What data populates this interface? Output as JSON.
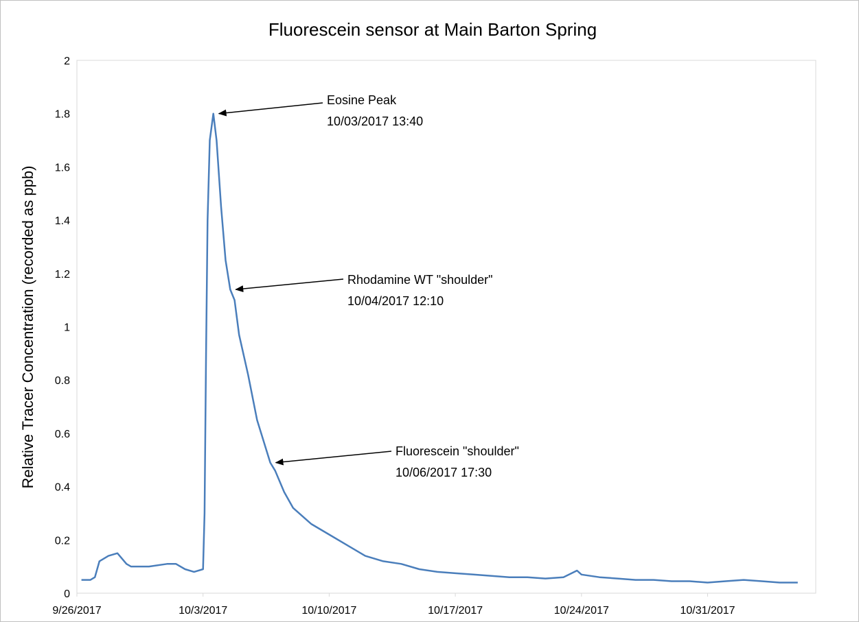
{
  "chart_data": {
    "type": "line",
    "title": "Fluorescein sensor at Main Barton Spring",
    "y_label": "Relative Tracer Concentration (recorded as ppb)",
    "xlim": [
      "2017-09-26T00:00",
      "2017-11-06T00:00"
    ],
    "ylim": [
      0,
      2
    ],
    "xticks": [
      {
        "value": "2017-09-26T00:00",
        "label": "9/26/2017"
      },
      {
        "value": "2017-10-03T00:00",
        "label": "10/3/2017"
      },
      {
        "value": "2017-10-10T00:00",
        "label": "10/10/2017"
      },
      {
        "value": "2017-10-17T00:00",
        "label": "10/17/2017"
      },
      {
        "value": "2017-10-24T00:00",
        "label": "10/24/2017"
      },
      {
        "value": "2017-10-31T00:00",
        "label": "10/31/2017"
      }
    ],
    "yticks": [
      0,
      0.2,
      0.4,
      0.6,
      0.8,
      1,
      1.2,
      1.4,
      1.6,
      1.8,
      2
    ],
    "grid": false,
    "series": [
      {
        "name": "Fluorescein sensor",
        "color": "#4a7ebb",
        "x": [
          "2017-09-26T06:00",
          "2017-09-26T18:00",
          "2017-09-27T00:00",
          "2017-09-27T06:00",
          "2017-09-27T18:00",
          "2017-09-28T06:00",
          "2017-09-28T18:00",
          "2017-09-29T00:00",
          "2017-09-30T00:00",
          "2017-10-01T00:00",
          "2017-10-01T12:00",
          "2017-10-02T00:00",
          "2017-10-02T12:00",
          "2017-10-03T00:00",
          "2017-10-03T02:00",
          "2017-10-03T04:00",
          "2017-10-03T06:00",
          "2017-10-03T09:00",
          "2017-10-03T13:40",
          "2017-10-03T18:00",
          "2017-10-04T00:00",
          "2017-10-04T06:00",
          "2017-10-04T12:10",
          "2017-10-04T18:00",
          "2017-10-05T00:00",
          "2017-10-05T12:00",
          "2017-10-06T00:00",
          "2017-10-06T12:00",
          "2017-10-06T17:30",
          "2017-10-07T00:00",
          "2017-10-07T12:00",
          "2017-10-08T00:00",
          "2017-10-08T12:00",
          "2017-10-09T00:00",
          "2017-10-10T00:00",
          "2017-10-11T00:00",
          "2017-10-12T00:00",
          "2017-10-13T00:00",
          "2017-10-14T00:00",
          "2017-10-15T00:00",
          "2017-10-16T00:00",
          "2017-10-17T00:00",
          "2017-10-18T00:00",
          "2017-10-19T00:00",
          "2017-10-20T00:00",
          "2017-10-21T00:00",
          "2017-10-22T00:00",
          "2017-10-23T00:00",
          "2017-10-23T18:00",
          "2017-10-24T00:00",
          "2017-10-25T00:00",
          "2017-10-26T00:00",
          "2017-10-27T00:00",
          "2017-10-28T00:00",
          "2017-10-29T00:00",
          "2017-10-30T00:00",
          "2017-10-31T00:00",
          "2017-11-01T00:00",
          "2017-11-02T00:00",
          "2017-11-03T00:00",
          "2017-11-04T00:00",
          "2017-11-05T00:00"
        ],
        "values": [
          0.05,
          0.05,
          0.06,
          0.12,
          0.14,
          0.15,
          0.11,
          0.1,
          0.1,
          0.11,
          0.11,
          0.09,
          0.08,
          0.09,
          0.3,
          0.9,
          1.4,
          1.7,
          1.8,
          1.7,
          1.45,
          1.25,
          1.14,
          1.1,
          0.97,
          0.82,
          0.65,
          0.54,
          0.49,
          0.46,
          0.38,
          0.32,
          0.29,
          0.26,
          0.22,
          0.18,
          0.14,
          0.12,
          0.11,
          0.09,
          0.08,
          0.075,
          0.07,
          0.065,
          0.06,
          0.06,
          0.055,
          0.06,
          0.085,
          0.07,
          0.06,
          0.055,
          0.05,
          0.05,
          0.045,
          0.045,
          0.04,
          0.045,
          0.05,
          0.045,
          0.04,
          0.04
        ]
      }
    ],
    "annotations": [
      {
        "lines": [
          "Eosine Peak",
          "10/03/2017 13:40"
        ]
      },
      {
        "lines": [
          "Rhodamine WT \"shoulder\"",
          "10/04/2017 12:10"
        ]
      },
      {
        "lines": [
          "Fluorescein \"shoulder\"",
          "10/06/2017 17:30"
        ]
      }
    ]
  }
}
